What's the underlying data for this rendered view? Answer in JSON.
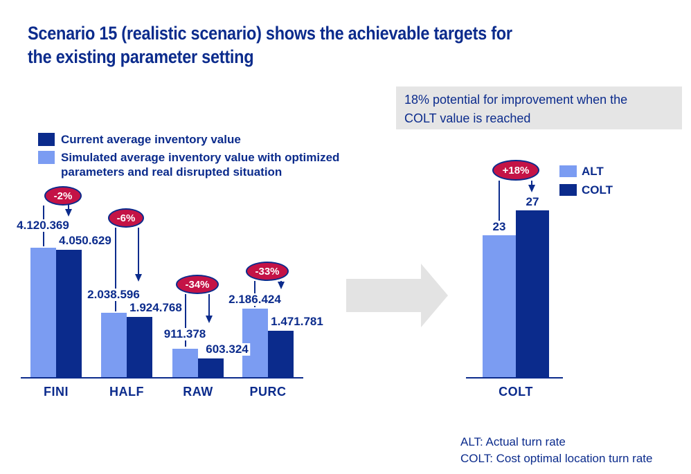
{
  "title": "Scenario 15 (realistic scenario) shows the achievable targets for\nthe existing parameter setting",
  "colors": {
    "navy": "#0b2b8c",
    "light_blue": "#7b9cf2",
    "badge_red": "#c41346",
    "gray_box": "#e5e5e5"
  },
  "legend_left": {
    "items": [
      {
        "label": "Current average inventory value",
        "color": "#0b2b8c"
      },
      {
        "label": "Simulated average inventory value with optimized parameters and real disrupted situation",
        "color": "#7b9cf2"
      }
    ]
  },
  "callout": {
    "text": "18% potential for improvement when the\nCOLT value is reached"
  },
  "chart_data": [
    {
      "type": "bar",
      "title": "",
      "categories": [
        "FINI",
        "HALF",
        "RAW",
        "PURC"
      ],
      "series": [
        {
          "name": "Simulated average inventory value with optimized parameters and real disrupted situation",
          "color_role": "light",
          "values": [
            4120369,
            2038596,
            911378,
            2186424
          ],
          "labels": [
            "4.120.369",
            "2.038.596",
            "911.378",
            "2.186.424"
          ]
        },
        {
          "name": "Current average inventory value",
          "color_role": "dark",
          "values": [
            4050629,
            1924768,
            603324,
            1471781
          ],
          "labels": [
            "4.050.629",
            "1.924.768",
            "603.324",
            "1.471.781"
          ]
        }
      ],
      "annotations": [
        "-2%",
        "-6%",
        "-34%",
        "-33%"
      ],
      "ylim": [
        0,
        4500000
      ],
      "grid": false,
      "value_axis_hidden": true,
      "legend_position": "top-left"
    },
    {
      "type": "bar",
      "title": "",
      "categories": [
        "COLT"
      ],
      "series": [
        {
          "name": "ALT",
          "color_role": "light",
          "values": [
            23
          ],
          "labels": [
            "23"
          ]
        },
        {
          "name": "COLT",
          "color_role": "dark",
          "values": [
            27
          ],
          "labels": [
            "27"
          ]
        }
      ],
      "annotations": [
        "+18%"
      ],
      "ylim": [
        0,
        30
      ],
      "grid": false,
      "value_axis_hidden": true,
      "legend_position": "right"
    }
  ],
  "footnotes": [
    "ALT: Actual turn rate",
    "COLT: Cost optimal location turn rate"
  ]
}
